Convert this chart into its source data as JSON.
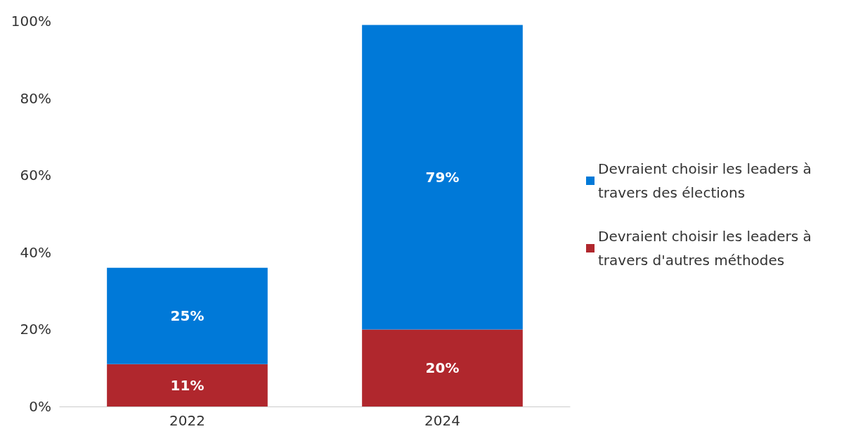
{
  "chart_data": {
    "type": "bar",
    "stacked": true,
    "categories": [
      "2022",
      "2024"
    ],
    "series": [
      {
        "name": "Devraient choisir les leaders à travers d'autres méthodes",
        "color": "#b0272d",
        "values": [
          11,
          20
        ],
        "value_labels": [
          "11%",
          "20%"
        ]
      },
      {
        "name": "Devraient choisir les leaders à travers des élections",
        "color": "#0079d8",
        "values": [
          25,
          79
        ],
        "value_labels": [
          "25%",
          "79%"
        ]
      }
    ],
    "ylim": [
      0,
      100
    ],
    "yticks": [
      {
        "value": 0,
        "label": "0%"
      },
      {
        "value": 20,
        "label": "20%"
      },
      {
        "value": 40,
        "label": "40%"
      },
      {
        "value": 60,
        "label": "60%"
      },
      {
        "value": 80,
        "label": "80%"
      },
      {
        "value": 100,
        "label": "100%"
      }
    ],
    "grid": false,
    "legend": "right"
  }
}
